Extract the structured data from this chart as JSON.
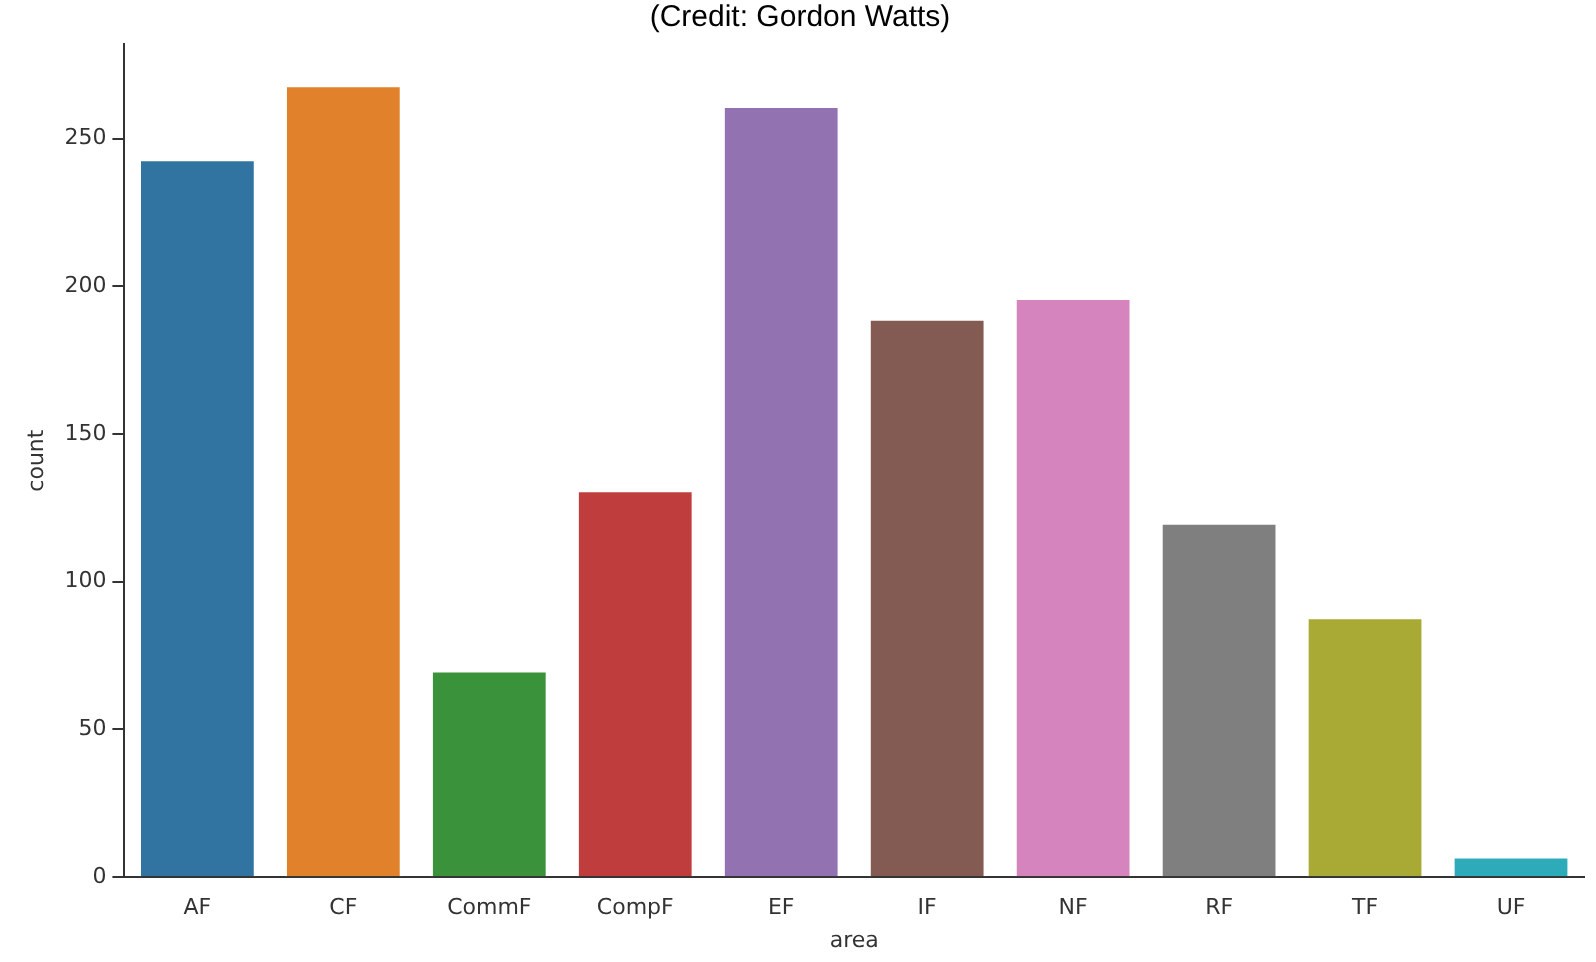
{
  "chart_data": {
    "type": "bar",
    "title": "(Credit: Gordon Watts)",
    "xlabel": "area",
    "ylabel": "count",
    "categories": [
      "AF",
      "CF",
      "CommF",
      "CompF",
      "EF",
      "IF",
      "NF",
      "RF",
      "TF",
      "UF"
    ],
    "values": [
      243,
      268,
      70,
      131,
      261,
      189,
      196,
      120,
      88,
      7
    ],
    "colors": [
      "#3274a1",
      "#e1812c",
      "#3a923a",
      "#c03d3e",
      "#9372b2",
      "#845b53",
      "#d684bd",
      "#7f7f7f",
      "#a9aa35",
      "#2eabb8"
    ],
    "ylim": [
      0,
      282
    ],
    "yticks": [
      0,
      50,
      100,
      150,
      200,
      250
    ],
    "grid": false,
    "legend": false
  }
}
